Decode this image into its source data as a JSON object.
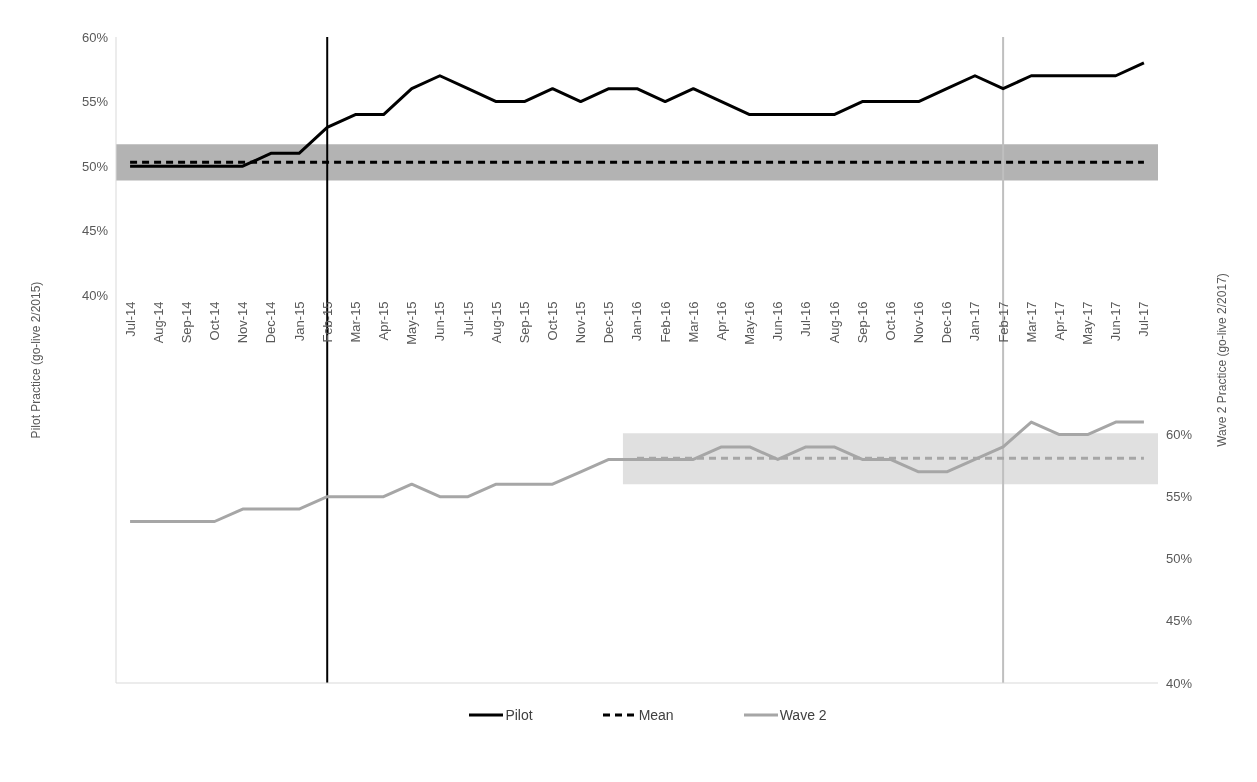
{
  "chart_data": {
    "type": "line",
    "ylabel": "Pilot Practice (go-live 2/2015)",
    "y2label": "Wave 2 Practice  (go-live 2/2017)",
    "categories": [
      "Jul-14",
      "Aug-14",
      "Sep-14",
      "Oct-14",
      "Nov-14",
      "Dec-14",
      "Jan-15",
      "Feb-15",
      "Mar-15",
      "Apr-15",
      "May-15",
      "Jun-15",
      "Jul-15",
      "Aug-15",
      "Sep-15",
      "Oct-15",
      "Nov-15",
      "Dec-15",
      "Jan-16",
      "Feb-16",
      "Mar-16",
      "Apr-16",
      "May-16",
      "Jun-16",
      "Jul-16",
      "Aug-16",
      "Sep-16",
      "Oct-16",
      "Nov-16",
      "Dec-16",
      "Jan-17",
      "Feb-17",
      "Mar-17",
      "Apr-17",
      "May-17",
      "Jun-17",
      "Jul-17"
    ],
    "series": [
      {
        "name": "Pilot",
        "color": "#000000",
        "values": [
          50,
          50,
          50,
          50,
          50,
          51,
          51,
          53,
          54,
          54,
          56,
          57,
          56,
          55,
          55,
          56,
          55,
          56,
          56,
          55,
          56,
          55,
          54,
          54,
          54,
          54,
          55,
          55,
          55,
          56,
          57,
          56,
          57,
          57,
          57,
          57,
          58
        ]
      },
      {
        "name": "Mean",
        "color": "#000000",
        "line_style": "dashed",
        "values": [
          50.3,
          50.3,
          50.3,
          50.3,
          50.3,
          50.3,
          50.3,
          50.3,
          50.3,
          50.3,
          50.3,
          50.3,
          50.3,
          50.3,
          50.3,
          50.3,
          50.3,
          50.3,
          50.3,
          50.3,
          50.3,
          50.3,
          50.3,
          50.3,
          50.3,
          50.3,
          50.3,
          50.3,
          50.3,
          50.3,
          50.3,
          50.3,
          50.3,
          50.3,
          50.3,
          50.3,
          50.3
        ]
      },
      {
        "name": "Wave 2",
        "color": "#a6a6a6",
        "axis": "y2",
        "values": [
          53,
          53,
          53,
          53,
          54,
          54,
          54,
          55,
          55,
          55,
          56,
          55,
          55,
          56,
          56,
          56,
          57,
          58,
          58,
          58,
          58,
          59,
          59,
          58,
          59,
          59,
          58,
          58,
          57,
          57,
          58,
          59,
          61,
          60,
          60,
          61,
          61
        ]
      },
      {
        "color": "#a6a6a6",
        "line_style": "dashed",
        "axis": "y2",
        "values": [
          null,
          null,
          null,
          null,
          null,
          null,
          null,
          null,
          null,
          null,
          null,
          null,
          null,
          null,
          null,
          null,
          null,
          null,
          58.1,
          58.1,
          58.1,
          58.1,
          58.1,
          58.1,
          58.1,
          58.1,
          58.1,
          58.1,
          58.1,
          58.1,
          58.1,
          58.1,
          58.1,
          58.1,
          58.1,
          58.1,
          58.1
        ]
      }
    ],
    "ylim": [
      10,
      60
    ],
    "yticks": [
      {
        "value": 40,
        "label": "40%"
      },
      {
        "value": 45,
        "label": "45%"
      },
      {
        "value": 50,
        "label": "50%"
      },
      {
        "value": 55,
        "label": "55%"
      },
      {
        "value": 60,
        "label": "60%"
      }
    ],
    "y2lim": [
      40,
      92
    ],
    "y2ticks": [
      {
        "value": 40,
        "label": "40%"
      },
      {
        "value": 45,
        "label": "45%"
      },
      {
        "value": 50,
        "label": "50%"
      },
      {
        "value": 55,
        "label": "55%"
      },
      {
        "value": 60,
        "label": "60%"
      }
    ],
    "bands": [
      {
        "axis": "y",
        "from": 48.9,
        "to": 51.7,
        "color": "#b3b3b3"
      },
      {
        "axis": "y2",
        "from": 56,
        "to": 60.1,
        "color": "#e0e0e0"
      }
    ],
    "ref_lines": [
      {
        "axis": "x",
        "value": "Feb-15",
        "color": "#000000"
      },
      {
        "axis": "x",
        "value": "Feb-17",
        "color": "#bfbfbf"
      }
    ],
    "marker": "none",
    "grid": false,
    "legend": "bottom"
  }
}
